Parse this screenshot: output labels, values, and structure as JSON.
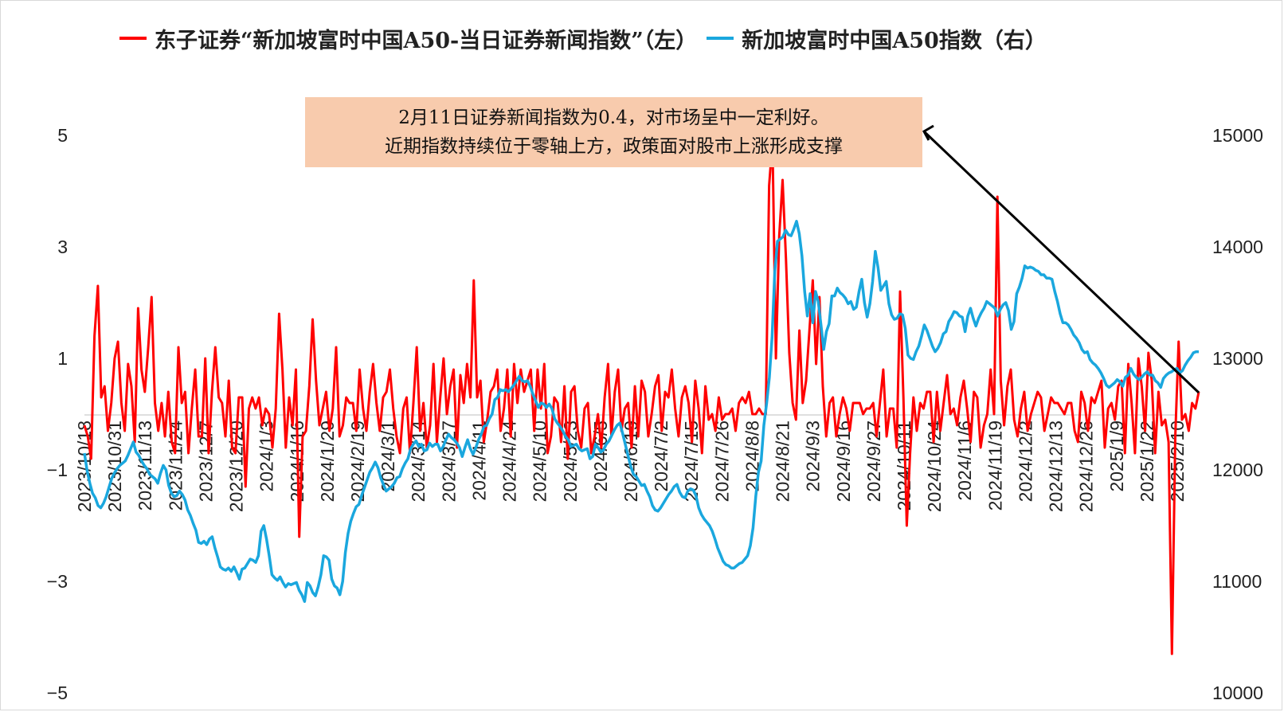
{
  "chart_data": {
    "type": "line",
    "legend": [
      {
        "label": "东子证券“新加坡富时中国A50-当日证券新闻指数”（左）",
        "color": "#ff0000"
      },
      {
        "label": "新加坡富时中国A50指数（右）",
        "color": "#1aa7de"
      }
    ],
    "legend_position": "top",
    "annotation": {
      "line1": "2月11日证券新闻指数为0.4，对市场呈中一定利好。",
      "line2": "近期指数持续位于零轴上方，政策面对股市上涨形成支撑"
    },
    "y_left": {
      "min": -5,
      "max": 5,
      "ticks": [
        "5",
        "3",
        "1",
        "−1",
        "−3",
        "−5"
      ]
    },
    "y_right": {
      "min": 10000,
      "max": 15000,
      "ticks": [
        "15000",
        "14000",
        "13000",
        "12000",
        "11000",
        "10000"
      ]
    },
    "x_labels": [
      "2023/10/18",
      "2023/10/31",
      "2023/11/13",
      "2023/11/24",
      "2023/12/7",
      "2023/12/20",
      "2024/1/3",
      "2024/1/16",
      "2024/1/29",
      "2024/2/19",
      "2024/3/1",
      "2024/3/14",
      "2024/3/27",
      "2024/4/11",
      "2024/4/24",
      "2024/5/10",
      "2024/5/23",
      "2024/6/5",
      "2024/6/19",
      "2024/7/2",
      "2024/7/15",
      "2024/7/26",
      "2024/8/8",
      "2024/8/21",
      "2024/9/3",
      "2024/9/16",
      "2024/9/27",
      "2024/10/11",
      "2024/10/24",
      "2024/11/6",
      "2024/11/19",
      "2024/12/2",
      "2024/12/13",
      "2024/12/26",
      "2025/1/9",
      "2025/1/22",
      "2025/2/10"
    ],
    "grid": false,
    "series": [
      {
        "name": "东子证券“新加坡富时中国A50-当日证券新闻指数”（左）",
        "axis": "left",
        "color": "#ff0000",
        "values": [
          -0.2,
          -0.4,
          -0.8,
          1.4,
          2.3,
          0.3,
          0.5,
          -0.3,
          0.2,
          1.0,
          1.3,
          0.2,
          -0.3,
          0.9,
          0.5,
          -0.5,
          1.9,
          0.8,
          0.4,
          1.2,
          2.1,
          0.2,
          -0.3,
          0.2,
          -0.4,
          0.4,
          -0.5,
          -0.7,
          1.2,
          0.2,
          0.4,
          -0.7,
          0.1,
          0.8,
          -0.4,
          -0.4,
          1.0,
          -0.7,
          0.4,
          1.2,
          0.3,
          0.2,
          -0.4,
          0.6,
          -0.6,
          -0.7,
          0.3,
          0.3,
          -1.3,
          0.1,
          0.3,
          0.1,
          0.3,
          -0.2,
          0.1,
          0.0,
          -0.6,
          0.1,
          1.8,
          0.8,
          -0.6,
          0.3,
          -0.2,
          0.8,
          -2.2,
          -0.4,
          -0.3,
          0.5,
          1.7,
          0.6,
          -0.2,
          0.1,
          0.4,
          -0.3,
          0.1,
          1.2,
          -0.4,
          -0.2,
          0.3,
          0.2,
          0.2,
          -0.3,
          0.8,
          0.1,
          -0.3,
          0.4,
          0.9,
          0.2,
          -0.3,
          0.3,
          0.4,
          0.8,
          0.1,
          -0.4,
          -0.7,
          0.1,
          0.3,
          -0.7,
          0.2,
          1.2,
          -0.3,
          0.2,
          -0.6,
          -0.2,
          0.9,
          -0.5,
          0.3,
          1.0,
          0.0,
          0.5,
          0.8,
          -0.6,
          0.7,
          0.2,
          0.9,
          0.3,
          2.4,
          0.3,
          0.6,
          -0.5,
          -0.1,
          0.4,
          0.5,
          0.8,
          -0.3,
          0.1,
          0.8,
          -0.4,
          0.9,
          0.2,
          0.8,
          0.4,
          0.6,
          0.8,
          -0.3,
          0.8,
          0.1,
          0.9,
          -0.7,
          -0.4,
          0.3,
          0.2,
          -0.5,
          0.5,
          -0.8,
          0.4,
          0.5,
          -0.3,
          -0.6,
          0.1,
          0.2,
          -0.7,
          -0.4,
          0.0,
          -0.6,
          0.3,
          0.9,
          -0.4,
          0.4,
          0.8,
          -0.3,
          0.1,
          0.2,
          -0.6,
          0.5,
          -0.4,
          0.6,
          0.4,
          -0.4,
          0.0,
          0.5,
          0.7,
          -0.3,
          0.4,
          0.3,
          0.8,
          0.1,
          -0.4,
          0.3,
          0.5,
          0.2,
          -0.5,
          0.6,
          0.1,
          -0.7,
          0.5,
          -0.1,
          0.0,
          -0.3,
          0.3,
          -0.1,
          0.0,
          0.0,
          0.1,
          -0.3,
          0.2,
          0.3,
          0.2,
          0.4,
          0.0,
          0.0,
          0.1,
          0.0,
          0.0,
          4.1,
          4.9,
          1.0,
          3.2,
          4.2,
          2.8,
          1.1,
          0.2,
          -0.1,
          1.5,
          0.2,
          0.6,
          1.5,
          2.4,
          0.9,
          2.1,
          0.5,
          -0.4,
          0.2,
          0.3,
          -0.4,
          0.0,
          0.3,
          0.1,
          -0.3,
          0.2,
          0.2,
          0.2,
          0.0,
          0.1,
          0.1,
          0.2,
          -0.4,
          0.2,
          0.8,
          -0.4,
          0.1,
          0.1,
          -0.6,
          2.2,
          0.3,
          -2.0,
          -0.7,
          0.3,
          -0.3,
          0.2,
          0.1,
          0.4,
          0.4,
          -0.5,
          0.4,
          -0.3,
          0.2,
          0.7,
          0.0,
          0.1,
          -0.2,
          0.3,
          0.6,
          0.1,
          -0.5,
          0.4,
          0.3,
          -0.6,
          -0.2,
          0.0,
          0.8,
          0.0,
          3.9,
          0.6,
          -0.2,
          0.5,
          0.8,
          -0.1,
          -0.4,
          0.1,
          0.4,
          -0.3,
          0.0,
          0.2,
          0.4,
          0.3,
          -0.3,
          0.0,
          0.3,
          0.2,
          0.2,
          0.1,
          0.0,
          0.2,
          0.2,
          -0.3,
          -0.5,
          0.4,
          0.2,
          -0.3,
          0.3,
          0.2,
          0.4,
          0.6,
          -0.6,
          0.1,
          0.2,
          -0.1,
          0.5,
          0.6,
          -0.7,
          0.9,
          0.2,
          -0.7,
          1.0,
          0.5,
          -0.3,
          1.1,
          0.6,
          -0.7,
          0.4,
          -0.2,
          -0.1,
          -0.5,
          -4.3,
          -0.4,
          1.3,
          -0.1,
          0.0,
          -0.3,
          0.2,
          0.1,
          0.4
        ]
      },
      {
        "name": "新加坡富时中国A50指数（右）",
        "axis": "right",
        "color": "#1aa7de",
        "values": [
          12150,
          11990,
          11880,
          11790,
          11750,
          11680,
          11660,
          11700,
          11760,
          11840,
          11920,
          11970,
          12010,
          12040,
          12060,
          12080,
          12130,
          12190,
          12250,
          12160,
          12130,
          12080,
          12040,
          12010,
          11960,
          11940,
          11920,
          11880,
          11970,
          12040,
          12000,
          11860,
          11790,
          11760,
          11770,
          11810,
          11780,
          11730,
          11640,
          11590,
          11520,
          11460,
          11350,
          11340,
          11360,
          11330,
          11380,
          11400,
          11300,
          11220,
          11130,
          11110,
          11100,
          11120,
          11090,
          11130,
          11080,
          11020,
          11110,
          11120,
          11160,
          11200,
          11190,
          11170,
          11230,
          11450,
          11500,
          11380,
          11230,
          11060,
          11030,
          11010,
          11040,
          10990,
          10950,
          10980,
          10970,
          10980,
          10990,
          10920,
          10880,
          10820,
          10990,
          10960,
          10900,
          10870,
          10950,
          11060,
          11230,
          11220,
          11190,
          11020,
          10960,
          10940,
          10880,
          11000,
          11260,
          11430,
          11540,
          11610,
          11670,
          11690,
          11770,
          11840,
          11910,
          11980,
          12020,
          12070,
          12020,
          11930,
          11870,
          11810,
          11830,
          11850,
          11880,
          11930,
          11940,
          12010,
          12060,
          12100,
          12190,
          12230,
          12260,
          12210,
          12230,
          12170,
          12180,
          12240,
          12210,
          12230,
          12230,
          12170,
          12210,
          12270,
          12320,
          12290,
          12270,
          12240,
          12200,
          12120,
          12200,
          12270,
          12190,
          12140,
          12200,
          12270,
          12320,
          12390,
          12400,
          12460,
          12500,
          12630,
          12650,
          12720,
          12710,
          12720,
          12700,
          12730,
          12760,
          12800,
          12840,
          12800,
          12790,
          12800,
          12750,
          12680,
          12620,
          12560,
          12600,
          12590,
          12560,
          12590,
          12550,
          12460,
          12420,
          12390,
          12350,
          12300,
          12270,
          12210,
          12220,
          12230,
          12190,
          12170,
          12180,
          12190,
          12100,
          12120,
          12230,
          12200,
          12160,
          12180,
          12230,
          12260,
          12310,
          12360,
          12400,
          12420,
          12330,
          12230,
          12130,
          12030,
          11960,
          11940,
          11900,
          11860,
          11870,
          11810,
          11760,
          11680,
          11640,
          11630,
          11660,
          11700,
          11740,
          11780,
          11810,
          11850,
          11870,
          11800,
          11760,
          11750,
          11810,
          11830,
          11820,
          11770,
          11660,
          11600,
          11560,
          11530,
          11500,
          11450,
          11380,
          11300,
          11240,
          11180,
          11150,
          11140,
          11120,
          11120,
          11140,
          11160,
          11170,
          11200,
          11230,
          11320,
          11480,
          11760,
          11980,
          12080,
          12400,
          12600,
          12830,
          13190,
          13780,
          14050,
          14070,
          14090,
          14150,
          14110,
          14100,
          14160,
          14230,
          14120,
          13920,
          13600,
          13380,
          13580,
          13320,
          13600,
          13510,
          13300,
          13080,
          13240,
          13310,
          13560,
          13560,
          13630,
          13590,
          13570,
          13540,
          13490,
          13510,
          13440,
          13460,
          13600,
          13710,
          13500,
          13370,
          13490,
          13690,
          13960,
          13810,
          13610,
          13650,
          13690,
          13490,
          13390,
          13350,
          13360,
          13400,
          13390,
          13270,
          13030,
          13000,
          12990,
          13060,
          13110,
          13200,
          13300,
          13250,
          13180,
          13110,
          13060,
          13090,
          13140,
          13220,
          13240,
          13330,
          13370,
          13420,
          13410,
          13380,
          13370,
          13240,
          13380,
          13450,
          13360,
          13290,
          13360,
          13410,
          13450,
          13510,
          13490,
          13470,
          13450,
          13380,
          13440,
          13480,
          13500,
          13430,
          13260,
          13330,
          13580,
          13640,
          13720,
          13830,
          13810,
          13820,
          13810,
          13790,
          13780,
          13750,
          13750,
          13720,
          13720,
          13710,
          13600,
          13510,
          13400,
          13320,
          13320,
          13300,
          13260,
          13210,
          13180,
          13140,
          13080,
          13050,
          13060,
          12990,
          12960,
          12940,
          12910,
          12870,
          12820,
          12760,
          12740,
          12760,
          12780,
          12810,
          12790,
          12750,
          12830,
          12850,
          12910,
          12860,
          12830,
          12810,
          12830,
          12860,
          12880,
          12850,
          12850,
          12800,
          12780,
          12740,
          12820,
          12850,
          12870,
          12880,
          12900,
          12910,
          12870,
          12890,
          12940,
          12980,
          13010,
          13050,
          13060,
          13060
        ]
      }
    ]
  }
}
